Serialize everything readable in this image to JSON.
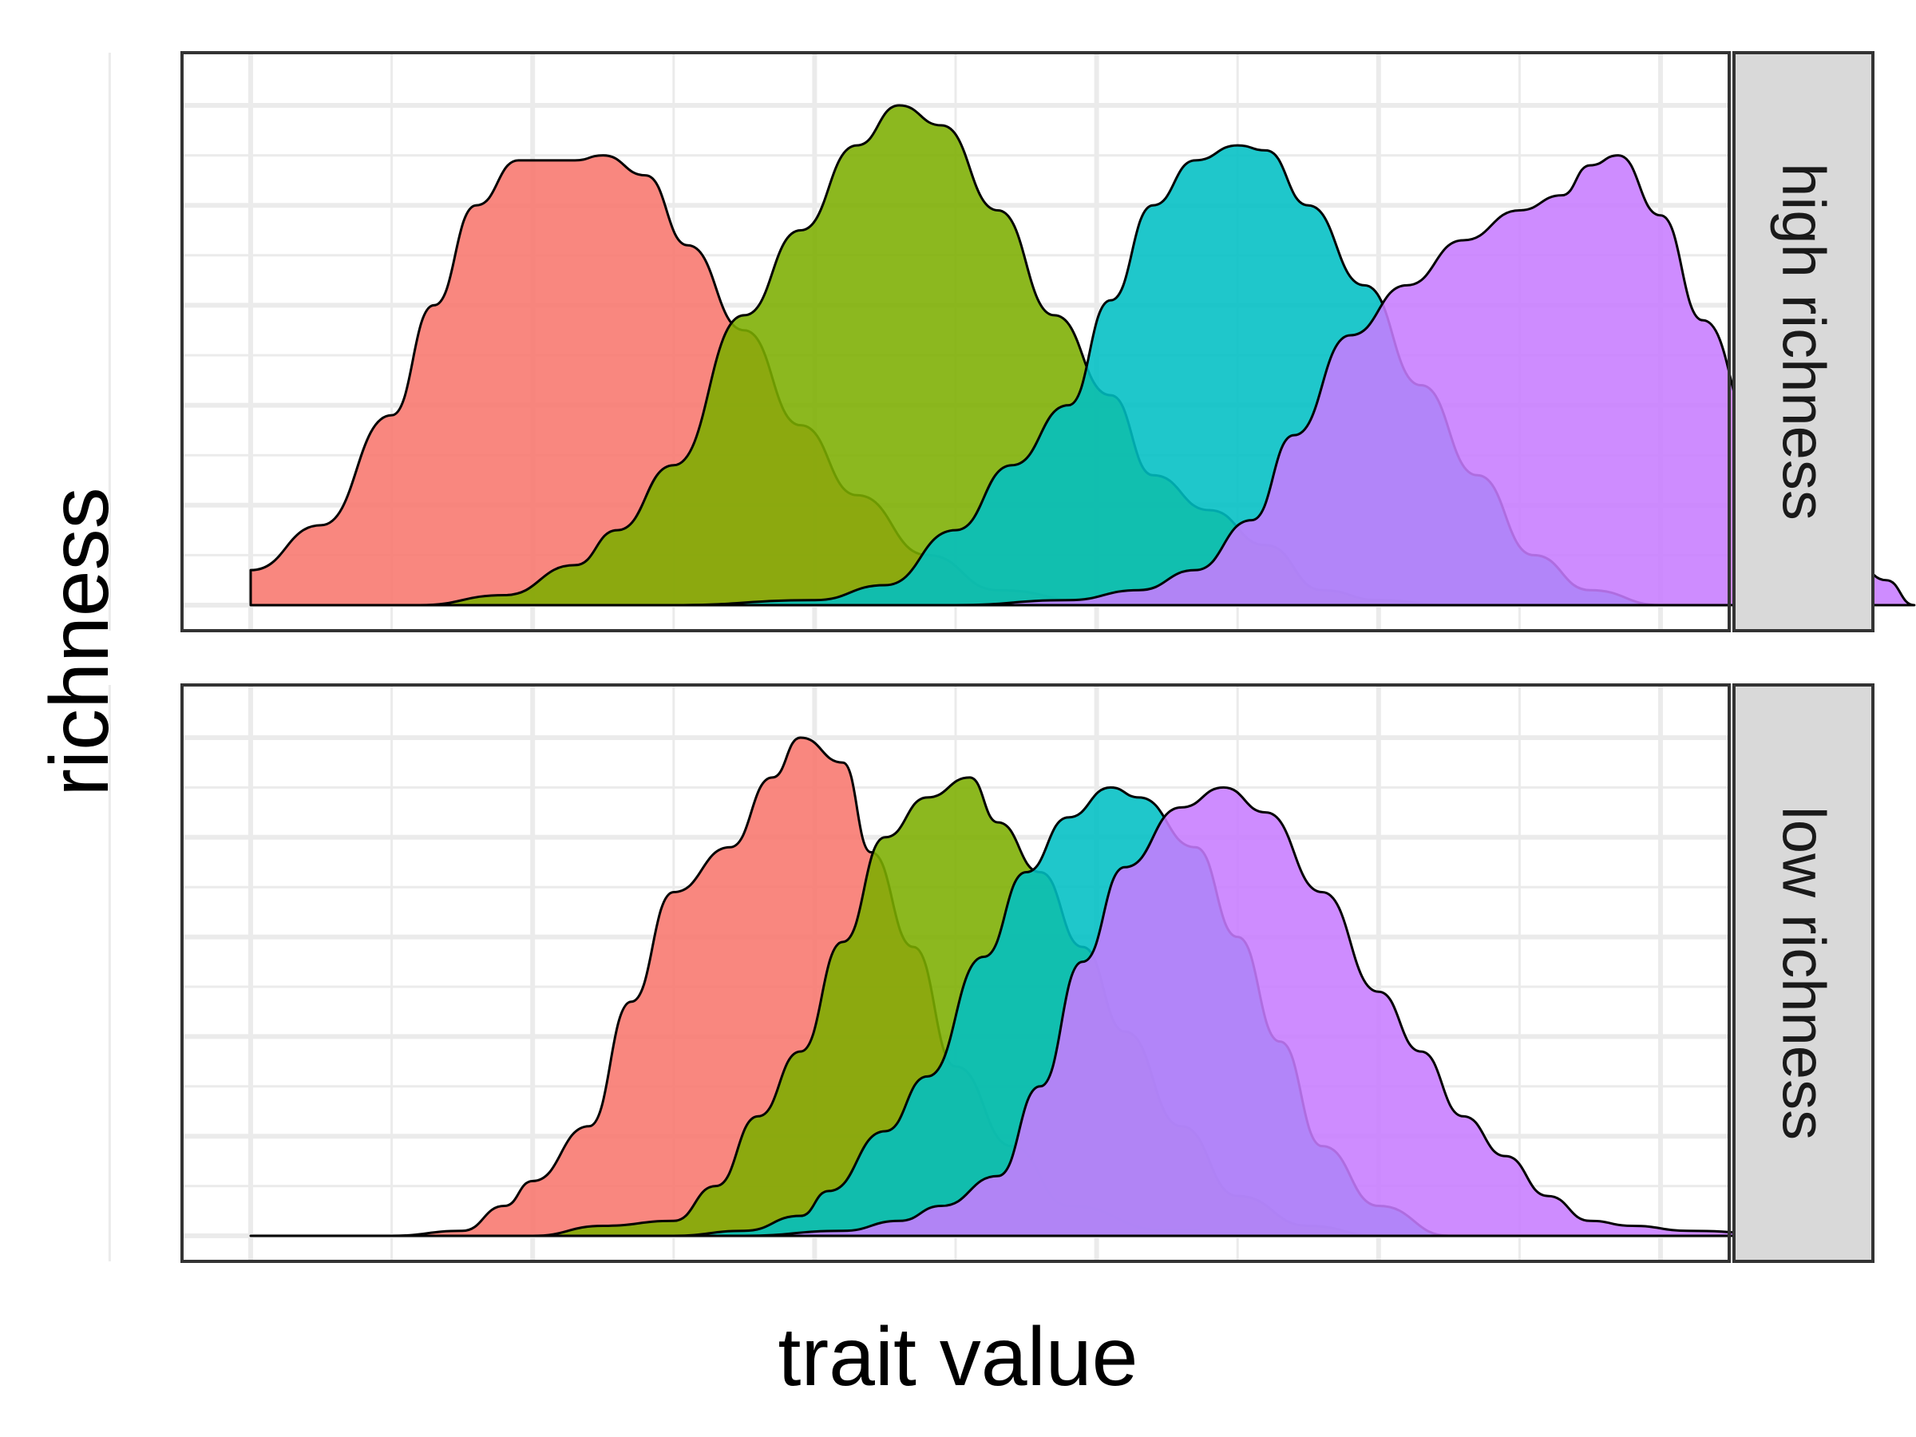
{
  "chart_data": {
    "type": "area",
    "subtype": "faceted overlapping density plot",
    "xlabel": "trait value",
    "ylabel": "richness",
    "show_tick_labels": false,
    "grid": true,
    "legend": "none",
    "x_range": [
      -0.05,
      1.05
    ],
    "y_range": [
      -0.05,
      1.05
    ],
    "group_colors": [
      "#F8766D",
      "#7CAE00",
      "#00BFC4",
      "#C77CFF"
    ],
    "fill_opacity": 0.88,
    "facets": [
      {
        "label": "high richness",
        "densities": [
          {
            "group": 1,
            "points": [
              [
                0,
                0.07
              ],
              [
                0.05,
                0.16
              ],
              [
                0.1,
                0.38
              ],
              [
                0.13,
                0.6
              ],
              [
                0.16,
                0.8
              ],
              [
                0.19,
                0.89
              ],
              [
                0.23,
                0.89
              ],
              [
                0.25,
                0.9
              ],
              [
                0.28,
                0.86
              ],
              [
                0.31,
                0.72
              ],
              [
                0.35,
                0.55
              ],
              [
                0.39,
                0.36
              ],
              [
                0.43,
                0.22
              ],
              [
                0.48,
                0.1
              ],
              [
                0.53,
                0.03
              ],
              [
                0.6,
                0.005
              ],
              [
                0.65,
                0
              ]
            ]
          },
          {
            "group": 2,
            "points": [
              [
                0.12,
                0
              ],
              [
                0.18,
                0.02
              ],
              [
                0.23,
                0.08
              ],
              [
                0.26,
                0.15
              ],
              [
                0.3,
                0.28
              ],
              [
                0.35,
                0.58
              ],
              [
                0.39,
                0.75
              ],
              [
                0.43,
                0.92
              ],
              [
                0.46,
                1.0
              ],
              [
                0.49,
                0.96
              ],
              [
                0.53,
                0.79
              ],
              [
                0.57,
                0.58
              ],
              [
                0.61,
                0.42
              ],
              [
                0.64,
                0.26
              ],
              [
                0.68,
                0.19
              ],
              [
                0.72,
                0.12
              ],
              [
                0.76,
                0.03
              ],
              [
                0.8,
                0.01
              ],
              [
                0.85,
                0
              ]
            ]
          },
          {
            "group": 3,
            "points": [
              [
                0.3,
                0
              ],
              [
                0.4,
                0.01
              ],
              [
                0.45,
                0.04
              ],
              [
                0.5,
                0.15
              ],
              [
                0.54,
                0.28
              ],
              [
                0.58,
                0.4
              ],
              [
                0.61,
                0.61
              ],
              [
                0.64,
                0.8
              ],
              [
                0.67,
                0.89
              ],
              [
                0.7,
                0.92
              ],
              [
                0.72,
                0.91
              ],
              [
                0.75,
                0.8
              ],
              [
                0.79,
                0.64
              ],
              [
                0.83,
                0.44
              ],
              [
                0.87,
                0.26
              ],
              [
                0.91,
                0.1
              ],
              [
                0.95,
                0.03
              ],
              [
                1.0,
                0
              ]
            ]
          },
          {
            "group": 4,
            "points": [
              [
                0.5,
                0
              ],
              [
                0.58,
                0.01
              ],
              [
                0.63,
                0.03
              ],
              [
                0.67,
                0.07
              ],
              [
                0.71,
                0.17
              ],
              [
                0.74,
                0.34
              ],
              [
                0.78,
                0.54
              ],
              [
                0.82,
                0.64
              ],
              [
                0.86,
                0.73
              ],
              [
                0.9,
                0.79
              ],
              [
                0.93,
                0.82
              ],
              [
                0.95,
                0.88
              ],
              [
                0.97,
                0.9
              ],
              [
                1.0,
                0.78
              ],
              [
                1.03,
                0.57
              ],
              [
                1.07,
                0.33
              ],
              [
                1.1,
                0.22
              ],
              [
                1.13,
                0.12
              ],
              [
                1.16,
                0.05
              ],
              [
                1.18,
                0
              ]
            ]
          }
        ]
      },
      {
        "label": "low richness",
        "densities": [
          {
            "group": 1,
            "points": [
              [
                0,
                0
              ],
              [
                0.1,
                0
              ],
              [
                0.15,
                0.01
              ],
              [
                0.18,
                0.06
              ],
              [
                0.2,
                0.11
              ],
              [
                0.24,
                0.22
              ],
              [
                0.27,
                0.47
              ],
              [
                0.3,
                0.69
              ],
              [
                0.34,
                0.78
              ],
              [
                0.37,
                0.92
              ],
              [
                0.39,
                1.0
              ],
              [
                0.42,
                0.95
              ],
              [
                0.44,
                0.77
              ],
              [
                0.47,
                0.58
              ],
              [
                0.5,
                0.34
              ],
              [
                0.54,
                0.18
              ],
              [
                0.58,
                0.06
              ],
              [
                0.65,
                0.01
              ],
              [
                0.75,
                0
              ]
            ]
          },
          {
            "group": 2,
            "points": [
              [
                0.2,
                0
              ],
              [
                0.25,
                0.02
              ],
              [
                0.3,
                0.03
              ],
              [
                0.33,
                0.1
              ],
              [
                0.36,
                0.24
              ],
              [
                0.39,
                0.37
              ],
              [
                0.42,
                0.59
              ],
              [
                0.45,
                0.8
              ],
              [
                0.48,
                0.88
              ],
              [
                0.51,
                0.92
              ],
              [
                0.53,
                0.83
              ],
              [
                0.56,
                0.73
              ],
              [
                0.59,
                0.58
              ],
              [
                0.62,
                0.41
              ],
              [
                0.66,
                0.22
              ],
              [
                0.7,
                0.08
              ],
              [
                0.75,
                0.02
              ],
              [
                0.8,
                0
              ]
            ]
          },
          {
            "group": 3,
            "points": [
              [
                0.3,
                0
              ],
              [
                0.35,
                0.01
              ],
              [
                0.39,
                0.04
              ],
              [
                0.41,
                0.09
              ],
              [
                0.45,
                0.21
              ],
              [
                0.48,
                0.32
              ],
              [
                0.52,
                0.56
              ],
              [
                0.55,
                0.73
              ],
              [
                0.58,
                0.84
              ],
              [
                0.61,
                0.9
              ],
              [
                0.63,
                0.88
              ],
              [
                0.67,
                0.78
              ],
              [
                0.7,
                0.6
              ],
              [
                0.73,
                0.39
              ],
              [
                0.76,
                0.18
              ],
              [
                0.8,
                0.06
              ],
              [
                0.85,
                0
              ]
            ]
          },
          {
            "group": 4,
            "points": [
              [
                0.35,
                0
              ],
              [
                0.42,
                0.01
              ],
              [
                0.46,
                0.03
              ],
              [
                0.49,
                0.06
              ],
              [
                0.53,
                0.12
              ],
              [
                0.56,
                0.3
              ],
              [
                0.59,
                0.55
              ],
              [
                0.62,
                0.74
              ],
              [
                0.66,
                0.86
              ],
              [
                0.69,
                0.9
              ],
              [
                0.72,
                0.85
              ],
              [
                0.76,
                0.69
              ],
              [
                0.8,
                0.49
              ],
              [
                0.83,
                0.37
              ],
              [
                0.86,
                0.24
              ],
              [
                0.89,
                0.16
              ],
              [
                0.92,
                0.08
              ],
              [
                0.95,
                0.03
              ],
              [
                0.98,
                0.02
              ],
              [
                1.02,
                0.01
              ],
              [
                1.1,
                0
              ]
            ]
          }
        ]
      }
    ]
  }
}
